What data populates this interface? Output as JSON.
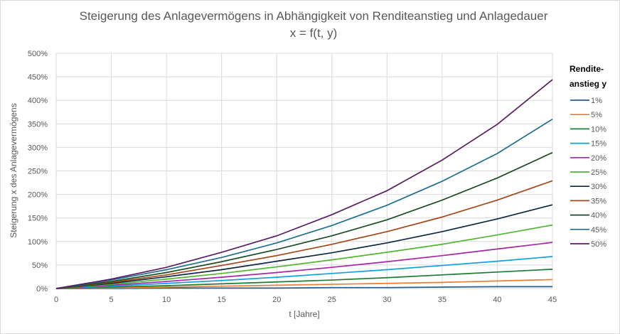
{
  "chart_data": {
    "type": "line",
    "title": "Steigerung des Anlagevermögens in Abhängigkeit von Renditeanstieg und Anlagedauer",
    "subtitle": "x = f(t, y)",
    "xlabel": "t [Jahre]",
    "ylabel": "Steigerung x des Anlagevermögens",
    "xlim": [
      0,
      45
    ],
    "ylim": [
      0,
      500
    ],
    "x_ticks": [
      "0",
      "5",
      "10",
      "15",
      "20",
      "25",
      "30",
      "35",
      "40",
      "45"
    ],
    "y_ticks": [
      "0%",
      "50%",
      "100%",
      "150%",
      "200%",
      "250%",
      "300%",
      "350%",
      "400%",
      "450%",
      "500%"
    ],
    "grid": true,
    "legend_title": "Rendite-\nanstieg y",
    "legend_title_lines": [
      "Rendite-",
      "anstieg y"
    ],
    "legend_position": "right",
    "x": [
      0,
      5,
      10,
      15,
      20,
      25,
      30,
      35,
      40,
      45
    ],
    "y_unit": "%",
    "series": [
      {
        "name": "1%",
        "color": "#255e91",
        "values": [
          0,
          0,
          1,
          1,
          1,
          2,
          2,
          3,
          4,
          4
        ]
      },
      {
        "name": "5%",
        "color": "#ed7d31",
        "values": [
          0,
          1,
          3,
          5,
          7,
          9,
          11,
          13,
          16,
          19
        ]
      },
      {
        "name": "10%",
        "color": "#1e7b34",
        "values": [
          0,
          3,
          6,
          10,
          14,
          18,
          23,
          29,
          35,
          41
        ]
      },
      {
        "name": "15%",
        "color": "#0fa0e0",
        "values": [
          0,
          5,
          11,
          17,
          24,
          32,
          40,
          49,
          58,
          68
        ]
      },
      {
        "name": "20%",
        "color": "#a626a4",
        "values": [
          0,
          7,
          15,
          24,
          34,
          45,
          57,
          70,
          84,
          98
        ]
      },
      {
        "name": "25%",
        "color": "#4eb82e",
        "values": [
          0,
          9,
          20,
          32,
          46,
          61,
          77,
          94,
          114,
          135
        ]
      },
      {
        "name": "30%",
        "color": "#0e2841",
        "values": [
          0,
          11,
          25,
          40,
          58,
          76,
          97,
          121,
          148,
          178
        ]
      },
      {
        "name": "35%",
        "color": "#a5461a",
        "values": [
          0,
          13,
          29,
          49,
          70,
          94,
          121,
          152,
          188,
          229
        ]
      },
      {
        "name": "40%",
        "color": "#1b4d24",
        "values": [
          0,
          15,
          34,
          57,
          83,
          112,
          146,
          188,
          235,
          289
        ]
      },
      {
        "name": "45%",
        "color": "#1f6f8f",
        "values": [
          0,
          18,
          40,
          66,
          97,
          134,
          177,
          228,
          287,
          360
        ]
      },
      {
        "name": "50%",
        "color": "#5b1d62",
        "values": [
          0,
          20,
          45,
          77,
          112,
          157,
          208,
          273,
          349,
          444
        ]
      }
    ]
  }
}
